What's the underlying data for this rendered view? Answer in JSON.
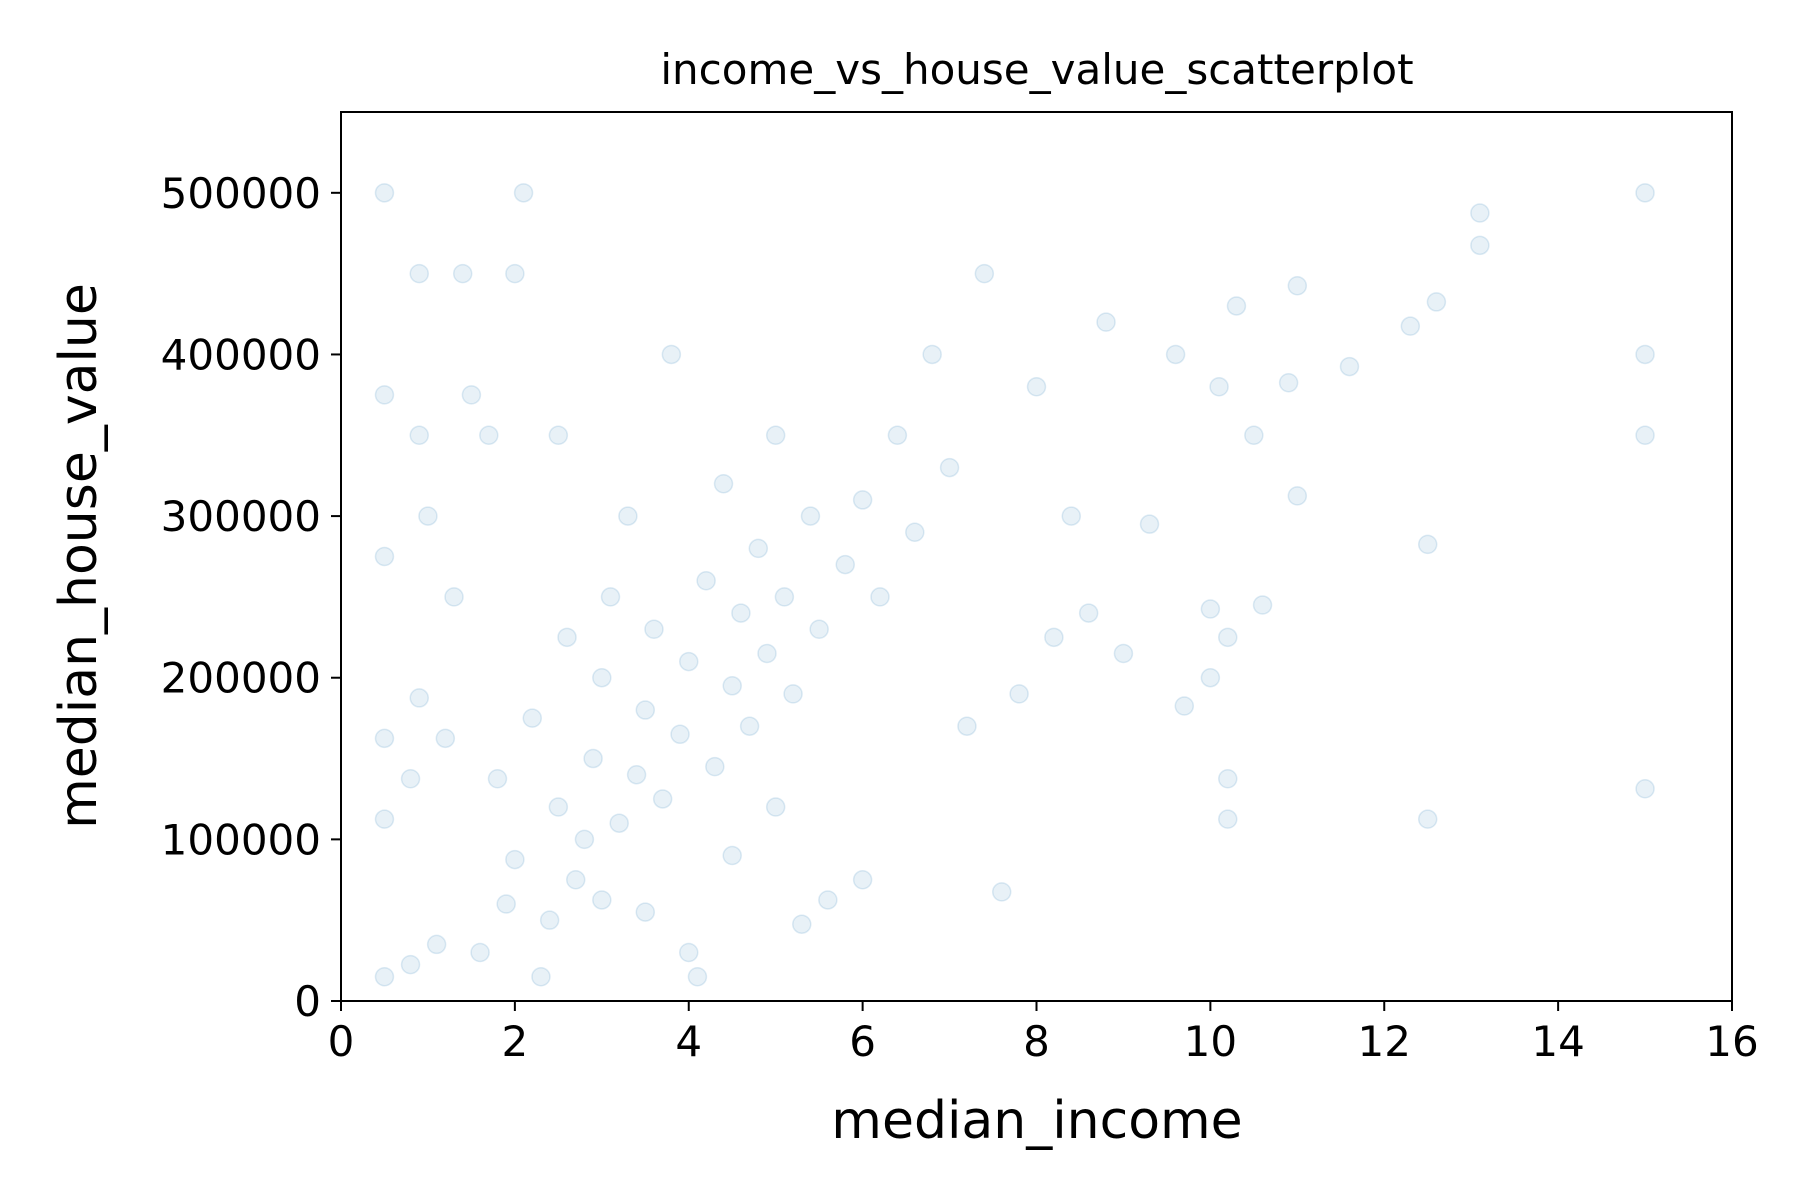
{
  "chart_data": {
    "type": "scatter",
    "title": "income_vs_house_value_scatterplot",
    "xlabel": "median_income",
    "ylabel": "median_house_value",
    "xlim": [
      0,
      16
    ],
    "ylim": [
      0,
      550000
    ],
    "x_ticks": [
      0,
      2,
      4,
      6,
      8,
      10,
      12,
      14,
      16
    ],
    "x_tick_labels": [
      "0",
      "2",
      "4",
      "6",
      "8",
      "10",
      "12",
      "14",
      "16"
    ],
    "y_ticks": [
      0,
      100000,
      200000,
      300000,
      400000,
      500000
    ],
    "y_tick_labels": [
      "0",
      "100000",
      "200000",
      "300000",
      "400000",
      "500000"
    ],
    "grid": false,
    "legend": "none",
    "marker_color": "#1f77b4",
    "marker_alpha": 0.1,
    "series": [
      {
        "points": [
          [
            0.5,
            15000
          ],
          [
            0.5,
            112500
          ],
          [
            0.5,
            162500
          ],
          [
            0.5,
            275000
          ],
          [
            0.5,
            375000
          ],
          [
            0.5,
            500000
          ],
          [
            0.8,
            22500
          ],
          [
            0.8,
            137500
          ],
          [
            0.9,
            187500
          ],
          [
            0.9,
            450000
          ],
          [
            0.9,
            350000
          ],
          [
            1.0,
            300000
          ],
          [
            1.1,
            35000
          ],
          [
            1.2,
            162500
          ],
          [
            1.3,
            250000
          ],
          [
            1.4,
            450000
          ],
          [
            1.5,
            375000
          ],
          [
            1.6,
            30000
          ],
          [
            1.7,
            350000
          ],
          [
            1.8,
            137500
          ],
          [
            1.9,
            60000
          ],
          [
            2.0,
            87500
          ],
          [
            2.0,
            450000
          ],
          [
            2.1,
            500000
          ],
          [
            2.2,
            175000
          ],
          [
            2.3,
            15000
          ],
          [
            2.4,
            50000
          ],
          [
            2.5,
            120000
          ],
          [
            2.5,
            350000
          ],
          [
            2.6,
            225000
          ],
          [
            2.7,
            75000
          ],
          [
            2.8,
            100000
          ],
          [
            2.9,
            150000
          ],
          [
            3.0,
            200000
          ],
          [
            3.0,
            62500
          ],
          [
            3.1,
            250000
          ],
          [
            3.2,
            110000
          ],
          [
            3.3,
            300000
          ],
          [
            3.4,
            140000
          ],
          [
            3.5,
            180000
          ],
          [
            3.5,
            55000
          ],
          [
            3.6,
            230000
          ],
          [
            3.7,
            125000
          ],
          [
            3.8,
            400000
          ],
          [
            3.9,
            165000
          ],
          [
            4.0,
            30000
          ],
          [
            4.0,
            210000
          ],
          [
            4.1,
            15000
          ],
          [
            4.2,
            260000
          ],
          [
            4.3,
            145000
          ],
          [
            4.4,
            320000
          ],
          [
            4.5,
            195000
          ],
          [
            4.5,
            90000
          ],
          [
            4.6,
            240000
          ],
          [
            4.7,
            170000
          ],
          [
            4.8,
            280000
          ],
          [
            4.9,
            215000
          ],
          [
            5.0,
            120000
          ],
          [
            5.0,
            350000
          ],
          [
            5.1,
            250000
          ],
          [
            5.2,
            190000
          ],
          [
            5.3,
            47500
          ],
          [
            5.4,
            300000
          ],
          [
            5.5,
            230000
          ],
          [
            5.6,
            62500
          ],
          [
            5.8,
            270000
          ],
          [
            6.0,
            310000
          ],
          [
            6.0,
            75000
          ],
          [
            6.2,
            250000
          ],
          [
            6.4,
            350000
          ],
          [
            6.6,
            290000
          ],
          [
            6.8,
            400000
          ],
          [
            7.0,
            330000
          ],
          [
            7.2,
            170000
          ],
          [
            7.4,
            450000
          ],
          [
            7.6,
            67500
          ],
          [
            7.8,
            190000
          ],
          [
            8.0,
            380000
          ],
          [
            8.2,
            225000
          ],
          [
            8.4,
            300000
          ],
          [
            8.6,
            240000
          ],
          [
            8.8,
            420000
          ],
          [
            9.0,
            215000
          ],
          [
            9.3,
            295000
          ],
          [
            9.6,
            400000
          ],
          [
            9.7,
            182500
          ],
          [
            10.0,
            200000
          ],
          [
            10.0,
            242500
          ],
          [
            10.1,
            380000
          ],
          [
            10.2,
            112500
          ],
          [
            10.2,
            137500
          ],
          [
            10.2,
            225000
          ],
          [
            10.3,
            430000
          ],
          [
            10.5,
            350000
          ],
          [
            10.6,
            245000
          ],
          [
            10.9,
            382500
          ],
          [
            11.0,
            312500
          ],
          [
            11.0,
            442500
          ],
          [
            11.6,
            392500
          ],
          [
            12.3,
            417500
          ],
          [
            12.5,
            112500
          ],
          [
            12.5,
            282500
          ],
          [
            12.6,
            432500
          ],
          [
            13.1,
            467500
          ],
          [
            13.1,
            487500
          ],
          [
            15.0,
            500001
          ],
          [
            15.0,
            400000
          ],
          [
            15.0,
            350000
          ],
          [
            15.0,
            131300
          ]
        ]
      }
    ]
  }
}
